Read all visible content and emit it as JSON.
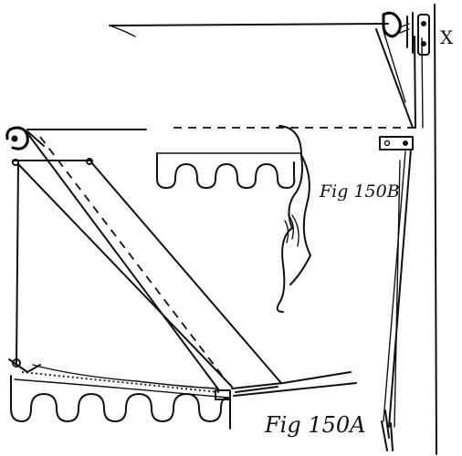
{
  "labels": {
    "fig_a": "Fig 150A",
    "fig_b": "Fig 150B",
    "wall_mark": "X"
  }
}
